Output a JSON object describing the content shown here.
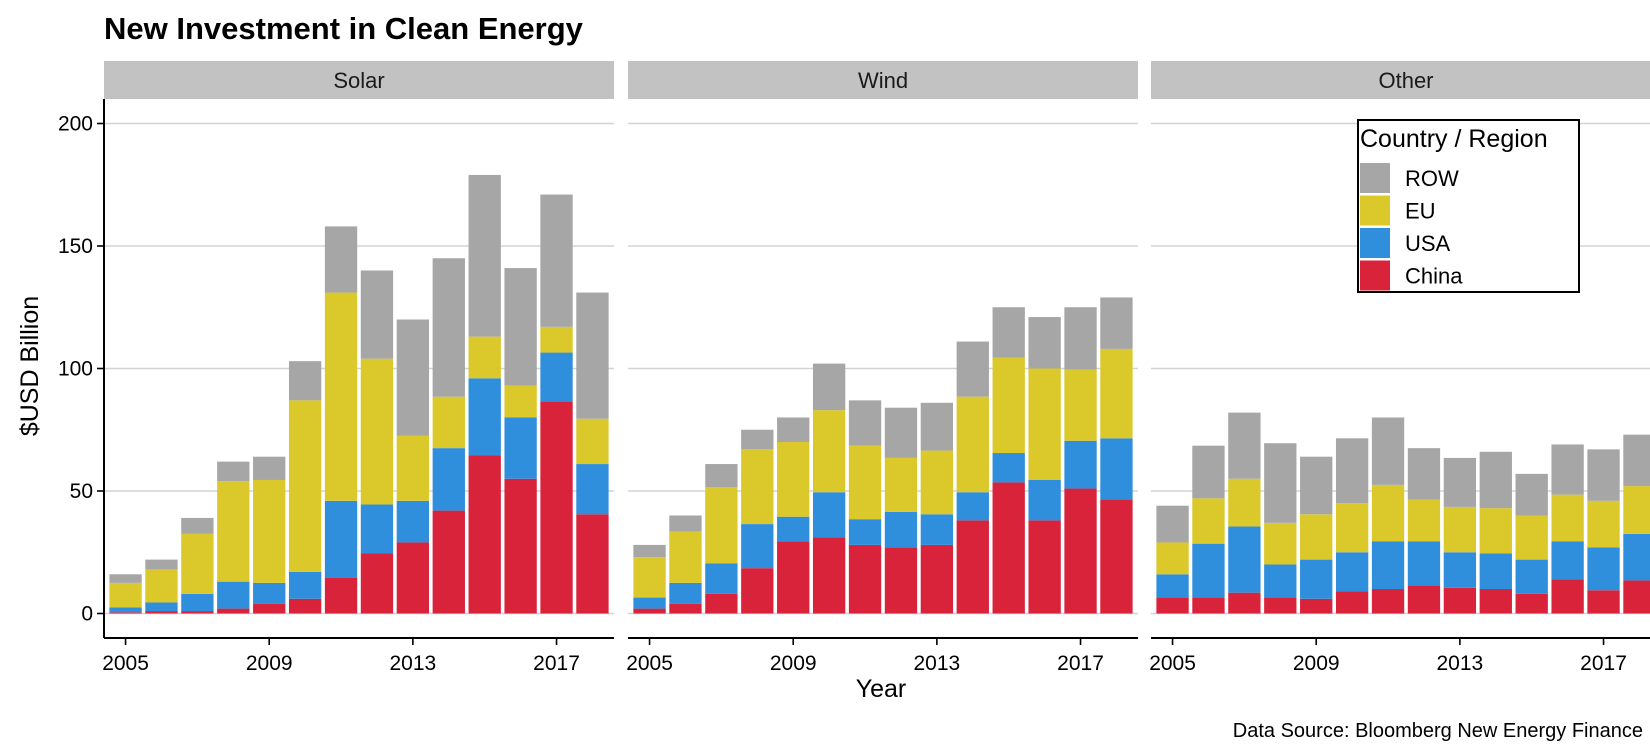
{
  "title": "New Investment in Clean Energy",
  "caption": "Data Source: Bloomberg New Energy Finance",
  "colors": {
    "China": "#d9233b",
    "USA": "#2f8fdc",
    "EU": "#dbc82b",
    "ROW": "#a6a6a6",
    "strip": "#c2c2c2",
    "grid": "#d3d3d3"
  },
  "legend": {
    "title": "Country / Region",
    "entries": [
      "ROW",
      "EU",
      "USA",
      "China"
    ]
  },
  "chart_data": {
    "type": "bar",
    "stacked": true,
    "facets": [
      "Solar",
      "Wind",
      "Other"
    ],
    "xlabel": "Year",
    "ylabel": "$USD Billion",
    "ylim": [
      -10,
      210
    ],
    "yticks": [
      0,
      50,
      100,
      150,
      200
    ],
    "xticks": [
      2005,
      2009,
      2013,
      2017
    ],
    "x": [
      2005,
      2006,
      2007,
      2008,
      2009,
      2010,
      2011,
      2012,
      2013,
      2014,
      2015,
      2016,
      2017,
      2018
    ],
    "grid": "horizontal",
    "legend_position": "top-right",
    "series_order": [
      "China",
      "USA",
      "EU",
      "ROW"
    ],
    "panels": [
      {
        "facet": "Solar",
        "series": [
          {
            "name": "China",
            "values": [
              0.5,
              1,
              1,
              2,
              4,
              6,
              14.5,
              24.5,
              29,
              42,
              64.5,
              55,
              86.5,
              40.5
            ]
          },
          {
            "name": "USA",
            "values": [
              2,
              3.5,
              7,
              11,
              8.5,
              11,
              31.5,
              20,
              17,
              25.5,
              31.5,
              25,
              20,
              20.5
            ]
          },
          {
            "name": "EU",
            "values": [
              10,
              13.5,
              24.5,
              41,
              42,
              70,
              85,
              59.5,
              26.5,
              21,
              17,
              13,
              10.5,
              18.5
            ]
          },
          {
            "name": "ROW",
            "values": [
              3.5,
              4,
              6.5,
              8,
              9.5,
              16,
              27,
              36,
              47.5,
              56.5,
              66,
              48,
              54,
              51.5
            ]
          }
        ]
      },
      {
        "facet": "Wind",
        "series": [
          {
            "name": "China",
            "values": [
              2,
              4,
              8,
              18.5,
              29.5,
              31,
              28,
              27,
              28,
              38,
              53.5,
              38,
              51,
              46.5
            ]
          },
          {
            "name": "USA",
            "values": [
              4.5,
              8.5,
              12.5,
              18,
              10,
              18.5,
              10.5,
              14.5,
              12.5,
              11.5,
              12,
              16.5,
              19.5,
              25
            ]
          },
          {
            "name": "EU",
            "values": [
              16.5,
              21,
              31,
              30.5,
              30.5,
              33.5,
              30,
              22,
              26,
              39,
              39,
              45.5,
              29,
              36.5
            ]
          },
          {
            "name": "ROW",
            "values": [
              5,
              6.5,
              9.5,
              8,
              10,
              19,
              18.5,
              20.5,
              19.5,
              22.5,
              20.5,
              21,
              25.5,
              21
            ]
          }
        ]
      },
      {
        "facet": "Other",
        "series": [
          {
            "name": "China",
            "values": [
              6.5,
              6.5,
              8.5,
              6.5,
              6,
              9,
              10,
              11.5,
              10.5,
              10,
              8,
              14,
              9.5,
              13.5
            ]
          },
          {
            "name": "USA",
            "values": [
              9.5,
              22,
              27,
              13.5,
              16,
              16,
              19.5,
              18,
              14.5,
              14.5,
              14,
              15.5,
              17.5,
              19
            ]
          },
          {
            "name": "EU",
            "values": [
              13,
              18.5,
              19.5,
              17,
              18.5,
              20,
              23,
              17,
              18.5,
              18.5,
              18,
              19,
              19,
              19.5
            ]
          },
          {
            "name": "ROW",
            "values": [
              15,
              21.5,
              27,
              32.5,
              23.5,
              26.5,
              27.5,
              21,
              20,
              23,
              17,
              20.5,
              21,
              21
            ]
          }
        ]
      }
    ]
  }
}
